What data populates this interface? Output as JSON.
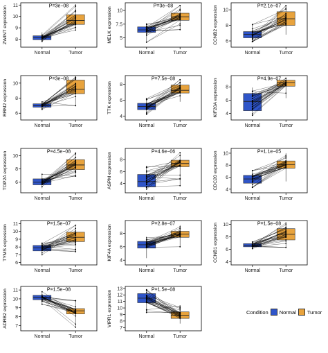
{
  "colors": {
    "normal": "#2f55c9",
    "tumor": "#e8a33d",
    "line": "#000000"
  },
  "legend": {
    "title": "Condition",
    "items": [
      "Normal",
      "Tumor"
    ]
  },
  "chart_data": [
    {
      "type": "box-paired",
      "gene": "ZWINT",
      "ylabel": "ZWINT expression",
      "pvalue": "P=3e−08",
      "categories": [
        "Normal",
        "Tumor"
      ],
      "yticks": [
        8,
        9,
        10,
        11
      ],
      "ylim": [
        7.3,
        11.2
      ],
      "series": [
        {
          "name": "Normal",
          "min": 7.8,
          "q1": 7.95,
          "median": 8.15,
          "q3": 8.3,
          "max": 8.6
        },
        {
          "name": "Tumor",
          "min": 8.8,
          "q1": 9.3,
          "median": 9.65,
          "q3": 10.15,
          "max": 11.0
        }
      ]
    },
    {
      "type": "box-paired",
      "gene": "MELK",
      "ylabel": "MELK expression",
      "pvalue": "P=3e−08",
      "categories": [
        "Normal",
        "Tumor"
      ],
      "yticks": [
        5.0,
        7.5,
        10.0
      ],
      "ylim": [
        3.3,
        11.4
      ],
      "series": [
        {
          "name": "Normal",
          "min": 4.2,
          "q1": 6.0,
          "median": 6.45,
          "q3": 7.0,
          "max": 7.7
        },
        {
          "name": "Tumor",
          "min": 6.5,
          "q1": 8.2,
          "median": 8.85,
          "q3": 9.5,
          "max": 10.9
        }
      ]
    },
    {
      "type": "box-paired",
      "gene": "CCNB2",
      "ylabel": "CCNB2 expression",
      "pvalue": "P=2.1e−07",
      "categories": [
        "Normal",
        "Tumor"
      ],
      "yticks": [
        6,
        8,
        10
      ],
      "ylim": [
        5.2,
        10.9
      ],
      "series": [
        {
          "name": "Normal",
          "min": 5.9,
          "q1": 6.4,
          "median": 6.85,
          "q3": 7.2,
          "max": 8.1
        },
        {
          "name": "Tumor",
          "min": 6.8,
          "q1": 8.0,
          "median": 8.85,
          "q3": 9.75,
          "max": 10.6
        }
      ]
    },
    {
      "type": "box-paired",
      "gene": "RRM2",
      "ylabel": "RRM2 expression",
      "pvalue": "P=3e−08",
      "categories": [
        "Normal",
        "Tumor"
      ],
      "yticks": [
        6,
        8,
        10
      ],
      "ylim": [
        5.1,
        11.0
      ],
      "series": [
        {
          "name": "Normal",
          "min": 6.5,
          "q1": 6.8,
          "median": 7.0,
          "q3": 7.25,
          "max": 7.5
        },
        {
          "name": "Tumor",
          "min": 7.0,
          "q1": 8.6,
          "median": 9.2,
          "q3": 10.4,
          "max": 10.9
        }
      ]
    },
    {
      "type": "box-paired",
      "gene": "TTK",
      "ylabel": "TTK expression",
      "pvalue": "P=7.5e−08",
      "categories": [
        "Normal",
        "Tumor"
      ],
      "yticks": [
        4,
        6,
        8
      ],
      "ylim": [
        3.5,
        9.1
      ],
      "series": [
        {
          "name": "Normal",
          "min": 4.2,
          "q1": 4.8,
          "median": 5.2,
          "q3": 5.6,
          "max": 6.2
        },
        {
          "name": "Tumor",
          "min": 5.8,
          "q1": 6.9,
          "median": 7.25,
          "q3": 7.9,
          "max": 8.6
        }
      ]
    },
    {
      "type": "box-paired",
      "gene": "KIF20A",
      "ylabel": "KIF20A expression",
      "pvalue": "P=4.9e−07",
      "categories": [
        "Normal",
        "Tumor"
      ],
      "yticks": [
        4,
        6,
        8
      ],
      "ylim": [
        3.0,
        9.7
      ],
      "series": [
        {
          "name": "Normal",
          "min": 3.7,
          "q1": 4.4,
          "median": 5.8,
          "q3": 7.0,
          "max": 7.9
        },
        {
          "name": "Tumor",
          "min": 6.3,
          "q1": 8.1,
          "median": 8.65,
          "q3": 9.0,
          "max": 9.3
        }
      ]
    },
    {
      "type": "box-paired",
      "gene": "TOP2A",
      "ylabel": "TOP2A expression",
      "pvalue": "P=4.5e−08",
      "categories": [
        "Normal",
        "Tumor"
      ],
      "yticks": [
        6,
        8,
        10
      ],
      "ylim": [
        4.4,
        11.1
      ],
      "series": [
        {
          "name": "Normal",
          "min": 5.1,
          "q1": 5.6,
          "median": 6.0,
          "q3": 6.5,
          "max": 7.2
        },
        {
          "name": "Tumor",
          "min": 6.9,
          "q1": 7.9,
          "median": 8.6,
          "q3": 9.4,
          "max": 10.4
        }
      ]
    },
    {
      "type": "box-paired",
      "gene": "ASPM",
      "ylabel": "ASPM expression",
      "pvalue": "P=4.6e−06",
      "categories": [
        "Normal",
        "Tumor"
      ],
      "yticks": [
        4,
        6,
        8
      ],
      "ylim": [
        2.4,
        9.9
      ],
      "series": [
        {
          "name": "Normal",
          "min": 3.0,
          "q1": 3.4,
          "median": 4.3,
          "q3": 5.5,
          "max": 6.8
        },
        {
          "name": "Tumor",
          "min": 3.6,
          "q1": 6.8,
          "median": 7.35,
          "q3": 7.9,
          "max": 9.2
        }
      ]
    },
    {
      "type": "box-paired",
      "gene": "CDC20",
      "ylabel": "CDC20 expression",
      "pvalue": "P=1.1e−05",
      "categories": [
        "Normal",
        "Tumor"
      ],
      "yticks": [
        4,
        6,
        8,
        10
      ],
      "ylim": [
        3.4,
        10.8
      ],
      "series": [
        {
          "name": "Normal",
          "min": 4.3,
          "q1": 5.0,
          "median": 5.7,
          "q3": 6.3,
          "max": 7.1
        },
        {
          "name": "Tumor",
          "min": 5.3,
          "q1": 7.5,
          "median": 8.1,
          "q3": 8.7,
          "max": 10.0
        }
      ]
    },
    {
      "type": "box-paired",
      "gene": "TYMS",
      "ylabel": "TYMS expression",
      "pvalue": "P=1.5e−07",
      "categories": [
        "Normal",
        "Tumor"
      ],
      "yticks": [
        6,
        7,
        8,
        9,
        10,
        11
      ],
      "ylim": [
        5.7,
        11.4
      ],
      "series": [
        {
          "name": "Normal",
          "min": 7.0,
          "q1": 7.5,
          "median": 7.9,
          "q3": 8.2,
          "max": 8.5
        },
        {
          "name": "Tumor",
          "min": 7.4,
          "q1": 8.7,
          "median": 9.25,
          "q3": 9.9,
          "max": 10.8
        }
      ]
    },
    {
      "type": "box-paired",
      "gene": "KIF4A",
      "ylabel": "KIF4A expression",
      "pvalue": "P=2.8e−07",
      "categories": [
        "Normal",
        "Tumor"
      ],
      "yticks": [
        4,
        6,
        8
      ],
      "ylim": [
        3.3,
        9.9
      ],
      "series": [
        {
          "name": "Normal",
          "min": 4.3,
          "q1": 5.8,
          "median": 6.3,
          "q3": 6.8,
          "max": 7.5
        },
        {
          "name": "Tumor",
          "min": 6.0,
          "q1": 7.4,
          "median": 7.9,
          "q3": 8.3,
          "max": 9.2
        }
      ]
    },
    {
      "type": "box-paired",
      "gene": "CCNB1",
      "ylabel": "CCNB1 expression",
      "pvalue": "P=1.5e−08",
      "categories": [
        "Normal",
        "Tumor"
      ],
      "yticks": [
        4,
        6,
        8,
        10
      ],
      "ylim": [
        3.5,
        10.6
      ],
      "series": [
        {
          "name": "Normal",
          "min": 6.1,
          "q1": 6.4,
          "median": 6.65,
          "q3": 6.9,
          "max": 7.2
        },
        {
          "name": "Tumor",
          "min": 6.3,
          "q1": 7.5,
          "median": 8.4,
          "q3": 9.3,
          "max": 10.2
        }
      ]
    },
    {
      "type": "box-paired",
      "gene": "ADRB2",
      "ylabel": "ADRB2 expression",
      "pvalue": "P=1.5e−08",
      "categories": [
        "Normal",
        "Tumor"
      ],
      "yticks": [
        7,
        8,
        9,
        10,
        11
      ],
      "ylim": [
        6.4,
        11.4
      ],
      "series": [
        {
          "name": "Normal",
          "min": 9.4,
          "q1": 9.9,
          "median": 10.15,
          "q3": 10.4,
          "max": 10.8
        },
        {
          "name": "Tumor",
          "min": 6.8,
          "q1": 8.3,
          "median": 8.65,
          "q3": 8.9,
          "max": 9.8
        }
      ]
    },
    {
      "type": "box-paired",
      "gene": "VIPR1",
      "ylabel": "VIPR1 expression",
      "pvalue": "P=1.5e−08",
      "categories": [
        "Normal",
        "Tumor"
      ],
      "yticks": [
        7,
        8,
        9,
        10,
        11,
        12,
        13
      ],
      "ylim": [
        6.5,
        13.3
      ],
      "series": [
        {
          "name": "Normal",
          "min": 9.3,
          "q1": 10.8,
          "median": 11.5,
          "q3": 12.2,
          "max": 12.8
        },
        {
          "name": "Tumor",
          "min": 7.6,
          "q1": 8.4,
          "median": 8.9,
          "q3": 9.4,
          "max": 10.3
        }
      ]
    }
  ]
}
